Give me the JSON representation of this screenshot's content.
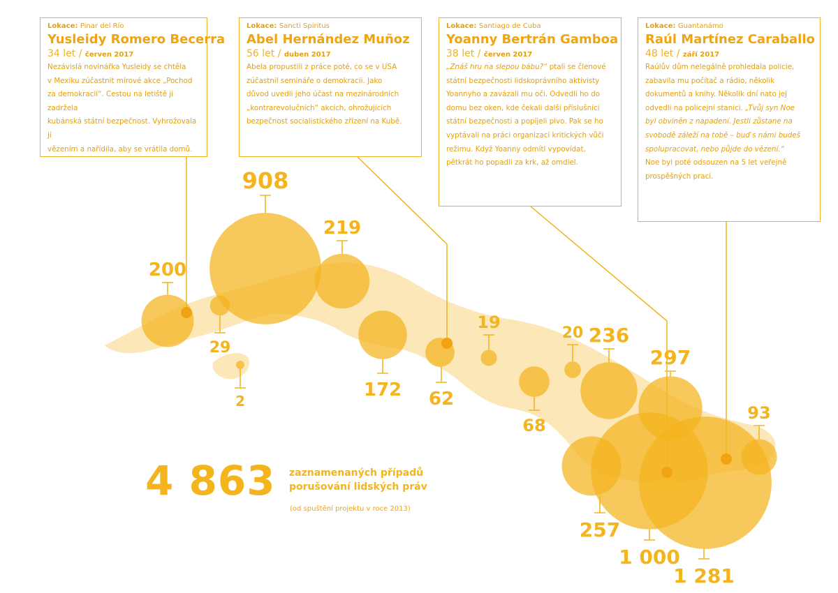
{
  "cards": [
    {
      "location_label": "Lokace:",
      "location": "Pinar del Río",
      "name": "Yusleidy Romero Becerra",
      "age": "34 let /",
      "date": "červen 2017",
      "text": [
        "Nezávislá novinářka Yusleidy se chtěla",
        "v Mexiku zúčastnit mírové akce „Pochod",
        "za demokracii“. Cestou na letiště ji zadržela",
        "kubánská státní bezpečnost. Vyhrožovala jí",
        "vězením a nařídila, aby se vrátila domů."
      ]
    },
    {
      "location_label": "Lokace:",
      "location": "Sancti Spiritus",
      "name": "Abel Hernández Muñoz",
      "age": "56 let /",
      "date": "duben 2017",
      "text": [
        "Abela propustili z práce poté, co se v USA",
        "zúčastnil semináře o demokracii. Jako",
        "důvod uvedli jeho účast na mezinárodních",
        "„kontrarevolučních“ akcích, ohrožujících",
        "bezpečnost socialistického zřízení na Kubě."
      ]
    },
    {
      "location_label": "Lokace:",
      "location": "Santiago de Cuba",
      "name": "Yoanny Bertrán Gamboa",
      "age": "38 let /",
      "date": "červen 2017",
      "text_italic_lead": "„Znáš hru na slepou bábu?“",
      "text": [
        " ptali se členové",
        "státní bezpečnosti lidskoprávního aktivisty",
        "Yoannyho a zavázali mu oči. Odvedli ho do",
        "domu bez oken, kde čekali další příslušníci",
        "státní bezpečnosti a popíjeli pivo. Pak se ho",
        "vyptávali na práci organizací kritických vůči",
        "režimu. Když Yoanny odmítl vypovídat,",
        "pětkrát ho popadli za krk, až omdlel."
      ]
    },
    {
      "location_label": "Lokace:",
      "location": "Guantanámo",
      "name": "Raúl Martínez Caraballo",
      "age": "48 let /",
      "date": "září 2017",
      "text": [
        "Raúlův dům nelegálně prohledala policie,",
        "zabavila mu počítač a rádio, několik",
        "dokumentů a knihy. Několik dní nato jej",
        "odvedli na policejní stanici."
      ],
      "text_italic": [
        "„Tvůj syn Noe",
        "byl obviněn z napadení. Jestli zůstane na",
        "svobodě záleží na tobě – buď s námi budeš",
        "spolupracovat, nebo půjde do vězení.“"
      ],
      "text_after": [
        "Noe byl poté odsouzen na 5 let veřejně",
        "prospěšných prací."
      ]
    }
  ],
  "total": {
    "value": "4 863",
    "label_line1": "zaznamenaných případů",
    "label_line2": "porušování lidských práv",
    "note": "(od spuštění projektu v roce 2013)"
  },
  "colors": {
    "bubble": "#f4b41e",
    "map": "#fbe7b8",
    "text": "#e59f0c"
  },
  "chart_data": {
    "type": "bubble-map",
    "unit": "zaznamenané případy",
    "provinces_values": [
      200,
      29,
      2,
      908,
      219,
      172,
      62,
      19,
      68,
      20,
      236,
      297,
      257,
      1000,
      1281,
      93
    ],
    "labels": [
      "200",
      "29",
      "2",
      "908",
      "219",
      "172",
      "62",
      "19",
      "68",
      "20",
      "236",
      "297",
      "257",
      "1 000",
      "1 281",
      "93"
    ]
  }
}
